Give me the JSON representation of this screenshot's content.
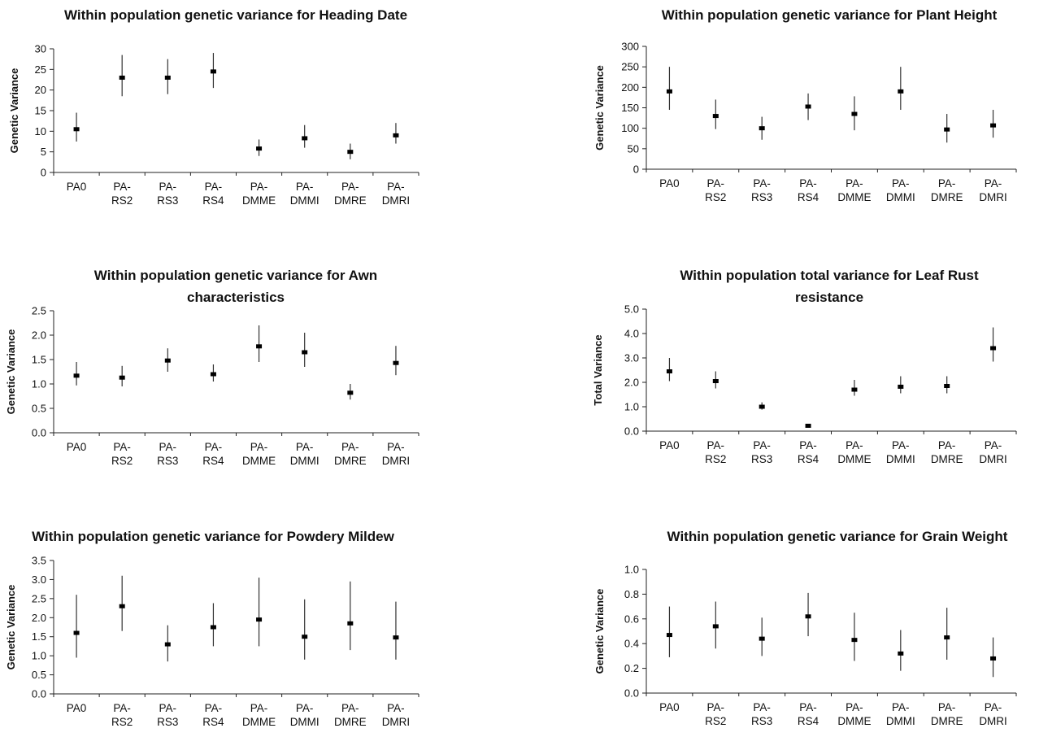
{
  "chart_data": [
    {
      "type": "scatter",
      "title": [
        "Within population genetic variance for Heading Date"
      ],
      "ylabel": "Genetic Variance",
      "categories": [
        [
          "PA0"
        ],
        [
          "PA-",
          "RS2"
        ],
        [
          "PA-",
          "RS3"
        ],
        [
          "PA-",
          "RS4"
        ],
        [
          "PA-",
          "DMME"
        ],
        [
          "PA-",
          "DMMI"
        ],
        [
          "PA-",
          "DMRE"
        ],
        [
          "PA-",
          "DMRI"
        ]
      ],
      "yticks": [
        "0",
        "5",
        "10",
        "15",
        "20",
        "25",
        "30"
      ],
      "ylim": [
        0,
        30
      ],
      "values": [
        10.5,
        23.0,
        23.0,
        24.5,
        5.8,
        8.3,
        5.0,
        9.0
      ],
      "lower": [
        7.5,
        18.5,
        19.0,
        20.5,
        4.0,
        6.0,
        3.2,
        7.0
      ],
      "upper": [
        14.5,
        28.5,
        27.5,
        29.0,
        8.0,
        11.5,
        7.0,
        12.0
      ],
      "grid": false
    },
    {
      "type": "scatter",
      "title": [
        "Within population genetic variance for Plant Height"
      ],
      "ylabel": "Genetic Variance",
      "categories": [
        [
          "PA0"
        ],
        [
          "PA-",
          "RS2"
        ],
        [
          "PA-",
          "RS3"
        ],
        [
          "PA-",
          "RS4"
        ],
        [
          "PA-",
          "DMME"
        ],
        [
          "PA-",
          "DMMI"
        ],
        [
          "PA-",
          "DMRE"
        ],
        [
          "PA-",
          "DMRI"
        ]
      ],
      "yticks": [
        "0",
        "50",
        "100",
        "150",
        "200",
        "250",
        "300"
      ],
      "ylim": [
        0,
        300
      ],
      "values": [
        190,
        130,
        100,
        153,
        135,
        190,
        97,
        107
      ],
      "lower": [
        145,
        98,
        72,
        120,
        95,
        145,
        65,
        77
      ],
      "upper": [
        250,
        170,
        128,
        185,
        178,
        250,
        135,
        145
      ],
      "grid": false
    },
    {
      "type": "scatter",
      "title": [
        "Within population genetic variance for Awn",
        "characteristics"
      ],
      "ylabel": "Genetic Variance",
      "categories": [
        [
          "PA0"
        ],
        [
          "PA-",
          "RS2"
        ],
        [
          "PA-",
          "RS3"
        ],
        [
          "PA-",
          "RS4"
        ],
        [
          "PA-",
          "DMME"
        ],
        [
          "PA-",
          "DMMI"
        ],
        [
          "PA-",
          "DMRE"
        ],
        [
          "PA-",
          "DMRI"
        ]
      ],
      "yticks": [
        "0.0",
        "0.5",
        "1.0",
        "1.5",
        "2.0",
        "2.5"
      ],
      "ylim": [
        0,
        2.5
      ],
      "values": [
        1.17,
        1.13,
        1.48,
        1.2,
        1.77,
        1.65,
        0.82,
        1.43
      ],
      "lower": [
        0.97,
        0.95,
        1.25,
        1.05,
        1.45,
        1.35,
        0.68,
        1.18
      ],
      "upper": [
        1.45,
        1.37,
        1.73,
        1.4,
        2.2,
        2.05,
        1.0,
        1.78
      ],
      "grid": false
    },
    {
      "type": "scatter",
      "title": [
        "Within population total variance for Leaf Rust",
        "resistance"
      ],
      "ylabel": "Total Variance",
      "categories": [
        [
          "PA0"
        ],
        [
          "PA-",
          "RS2"
        ],
        [
          "PA-",
          "RS3"
        ],
        [
          "PA-",
          "RS4"
        ],
        [
          "PA-",
          "DMME"
        ],
        [
          "PA-",
          "DMMI"
        ],
        [
          "PA-",
          "DMRE"
        ],
        [
          "PA-",
          "DMRI"
        ]
      ],
      "yticks": [
        "0.0",
        "1.0",
        "2.0",
        "3.0",
        "4.0",
        "5.0"
      ],
      "ylim": [
        0,
        5
      ],
      "values": [
        2.45,
        2.05,
        1.0,
        0.22,
        1.7,
        1.82,
        1.85,
        3.4
      ],
      "lower": [
        2.05,
        1.75,
        0.88,
        0.18,
        1.45,
        1.55,
        1.55,
        2.85
      ],
      "upper": [
        3.0,
        2.45,
        1.18,
        0.26,
        2.1,
        2.25,
        2.25,
        4.25
      ],
      "grid": false
    },
    {
      "type": "scatter",
      "title": [
        "Within population genetic variance for Powdery Mildew"
      ],
      "ylabel": "Genetic Variance",
      "categories": [
        [
          "PA0"
        ],
        [
          "PA-",
          "RS2"
        ],
        [
          "PA-",
          "RS3"
        ],
        [
          "PA-",
          "RS4"
        ],
        [
          "PA-",
          "DMME"
        ],
        [
          "PA-",
          "DMMI"
        ],
        [
          "PA-",
          "DMRE"
        ],
        [
          "PA-",
          "DMRI"
        ]
      ],
      "yticks": [
        "0.0",
        "0.5",
        "1.0",
        "1.5",
        "2.0",
        "2.5",
        "3.0",
        "3.5"
      ],
      "ylim": [
        0,
        3.5
      ],
      "values": [
        1.6,
        2.3,
        1.3,
        1.75,
        1.95,
        1.5,
        1.85,
        1.48
      ],
      "lower": [
        0.95,
        1.65,
        0.85,
        1.25,
        1.25,
        0.9,
        1.15,
        0.9
      ],
      "upper": [
        2.6,
        3.1,
        1.8,
        2.38,
        3.05,
        2.48,
        2.95,
        2.42
      ],
      "grid": false
    },
    {
      "type": "scatter",
      "title": [
        "Within population genetic variance for Grain Weight"
      ],
      "ylabel": "Genetic Variance",
      "categories": [
        [
          "PA0"
        ],
        [
          "PA-",
          "RS2"
        ],
        [
          "PA-",
          "RS3"
        ],
        [
          "PA-",
          "RS4"
        ],
        [
          "PA-",
          "DMME"
        ],
        [
          "PA-",
          "DMMI"
        ],
        [
          "PA-",
          "DMRE"
        ],
        [
          "PA-",
          "DMRI"
        ]
      ],
      "yticks": [
        "0.0",
        "0.2",
        "0.4",
        "0.6",
        "0.8",
        "1.0"
      ],
      "ylim": [
        0,
        1.0
      ],
      "values": [
        0.47,
        0.54,
        0.44,
        0.62,
        0.43,
        0.32,
        0.45,
        0.28
      ],
      "lower": [
        0.29,
        0.36,
        0.3,
        0.46,
        0.26,
        0.18,
        0.27,
        0.13
      ],
      "upper": [
        0.7,
        0.74,
        0.61,
        0.81,
        0.65,
        0.51,
        0.69,
        0.45
      ],
      "grid": false
    }
  ]
}
